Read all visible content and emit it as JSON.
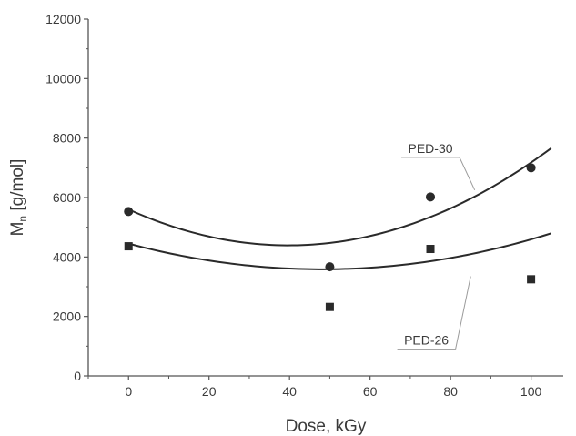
{
  "chart_data": {
    "type": "scatter",
    "title": "",
    "xlabel": "Dose, kGy",
    "ylabel_main": "M",
    "ylabel_sub": "n",
    "ylabel_rest": " [g/mol]",
    "xlim": [
      -10,
      108
    ],
    "ylim": [
      0,
      12000
    ],
    "x_ticks": [
      0,
      20,
      40,
      60,
      80,
      100
    ],
    "x_tick_labels": [
      "0",
      "20",
      "40",
      "60",
      "80",
      "100"
    ],
    "y_ticks": [
      0,
      2000,
      4000,
      6000,
      8000,
      10000,
      12000
    ],
    "y_tick_labels": [
      "0",
      "2000",
      "4000",
      "6000",
      "8000",
      "10000",
      "12000"
    ],
    "grid": false,
    "series": [
      {
        "name": "PED-30",
        "marker": "circle",
        "x": [
          0,
          50,
          75,
          100
        ],
        "y": [
          5530,
          3670,
          6020,
          7000
        ],
        "fit": {
          "type": "quadratic",
          "a": 0.7667,
          "b": -60.9,
          "c": 5600,
          "x_range": [
            0,
            105
          ]
        },
        "label_at": [
          75,
          7350
        ],
        "leader_to": [
          86,
          6250
        ]
      },
      {
        "name": "PED-26",
        "marker": "square",
        "x": [
          0,
          50,
          75,
          100
        ],
        "y": [
          4360,
          2320,
          4270,
          3250
        ],
        "fit": {
          "type": "quadratic",
          "a": 0.3733,
          "b": -35.9,
          "c": 4450,
          "x_range": [
            0,
            105
          ]
        },
        "label_at": [
          74,
          900
        ],
        "leader_to": [
          85,
          3350
        ]
      }
    ],
    "colors": {
      "ink": "#2a2a2a",
      "axis": "#555555",
      "leader": "#9a9a9a"
    }
  }
}
